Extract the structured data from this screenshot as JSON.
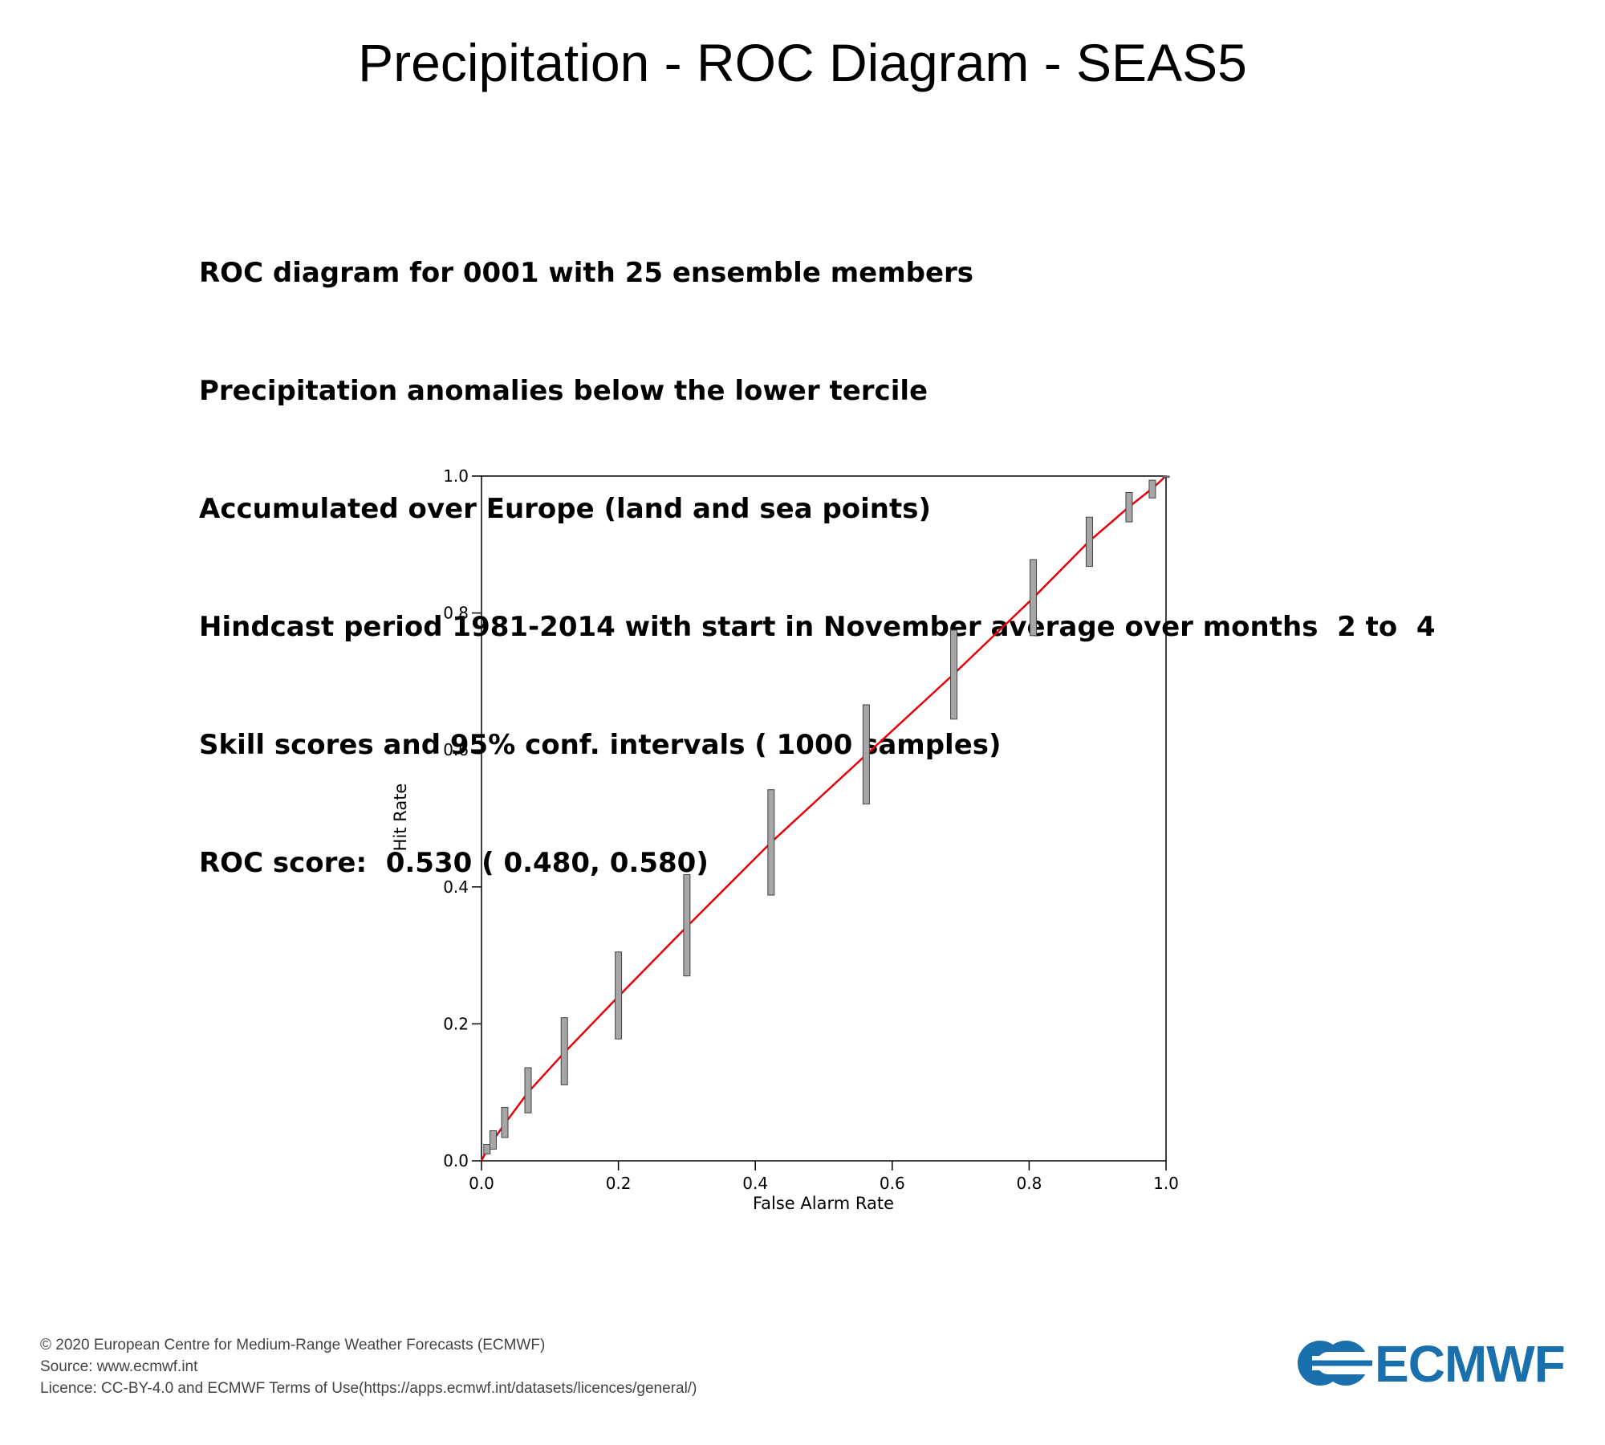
{
  "title": "Precipitation - ROC Diagram - SEAS5",
  "subtitle_lines": [
    "ROC diagram for 0001 with 25 ensemble members",
    "Precipitation anomalies below the lower tercile",
    "Accumulated over Europe (land and sea points)",
    "Hindcast period 1981-2014 with start in November average over months  2 to  4",
    "Skill scores and 95% conf. intervals ( 1000 samples)",
    "ROC score:  0.530 ( 0.480, 0.580)"
  ],
  "chart_data": {
    "type": "line",
    "xlabel": "False Alarm Rate",
    "ylabel": "Hit Rate",
    "xlim": [
      0,
      1
    ],
    "ylim": [
      0,
      1
    ],
    "x_ticks": [
      "0.0",
      "0.2",
      "0.4",
      "0.6",
      "0.8",
      "1.0"
    ],
    "y_ticks": [
      "0.0",
      "0.2",
      "0.4",
      "0.6",
      "0.8",
      "1.0"
    ],
    "grid": false,
    "series": [
      {
        "color": "#e8000b",
        "points": [
          {
            "x": 0.0,
            "y": 0.0,
            "ylow": 0.0,
            "yhigh": 0.0
          },
          {
            "x": 0.008,
            "y": 0.016,
            "ylow": 0.01,
            "yhigh": 0.024
          },
          {
            "x": 0.017,
            "y": 0.03,
            "ylow": 0.017,
            "yhigh": 0.044
          },
          {
            "x": 0.034,
            "y": 0.054,
            "ylow": 0.034,
            "yhigh": 0.078
          },
          {
            "x": 0.068,
            "y": 0.1,
            "ylow": 0.07,
            "yhigh": 0.136
          },
          {
            "x": 0.121,
            "y": 0.158,
            "ylow": 0.111,
            "yhigh": 0.209
          },
          {
            "x": 0.2,
            "y": 0.24,
            "ylow": 0.178,
            "yhigh": 0.305
          },
          {
            "x": 0.3,
            "y": 0.342,
            "ylow": 0.27,
            "yhigh": 0.418
          },
          {
            "x": 0.423,
            "y": 0.465,
            "ylow": 0.388,
            "yhigh": 0.542
          },
          {
            "x": 0.562,
            "y": 0.593,
            "ylow": 0.521,
            "yhigh": 0.666
          },
          {
            "x": 0.69,
            "y": 0.711,
            "ylow": 0.645,
            "yhigh": 0.775
          },
          {
            "x": 0.806,
            "y": 0.822,
            "ylow": 0.767,
            "yhigh": 0.878
          },
          {
            "x": 0.888,
            "y": 0.905,
            "ylow": 0.868,
            "yhigh": 0.94
          },
          {
            "x": 0.946,
            "y": 0.955,
            "ylow": 0.933,
            "yhigh": 0.976
          },
          {
            "x": 0.98,
            "y": 0.982,
            "ylow": 0.968,
            "yhigh": 0.994
          },
          {
            "x": 1.0,
            "y": 1.0,
            "ylow": 0.998,
            "yhigh": 1.0
          }
        ]
      }
    ],
    "error_bar_color": "#a6a6a6"
  },
  "footer": {
    "copyright": "© 2020 European Centre for Medium-Range Weather Forecasts (ECMWF)",
    "source": "Source: www.ecmwf.int",
    "licence": "Licence: CC-BY-4.0 and ECMWF Terms of Use(https://apps.ecmwf.int/datasets/licences/general/)"
  },
  "logo": {
    "text": "ECMWF",
    "color": "#1a6fad"
  }
}
